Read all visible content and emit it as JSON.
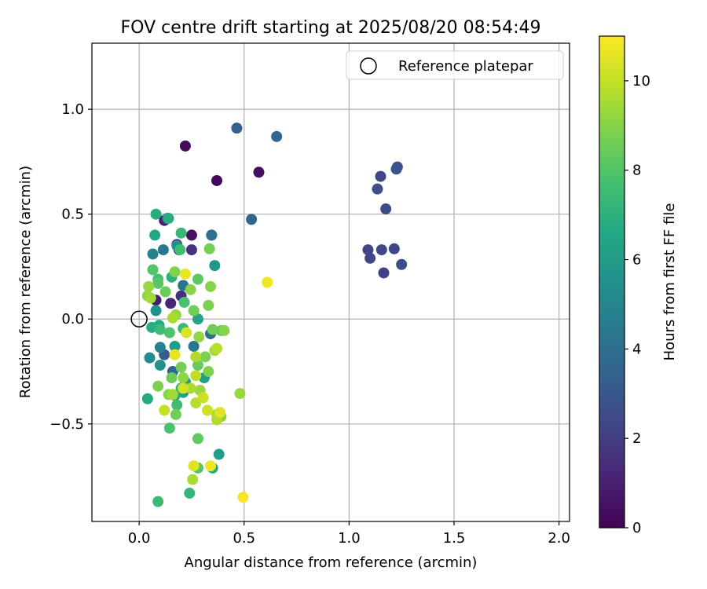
{
  "chart_data": {
    "type": "scatter",
    "title": "FOV centre drift starting at 2025/08/20 08:54:49",
    "xlabel": "Angular distance from reference (arcmin)",
    "ylabel": "Rotation from reference (arcmin)",
    "xlim": [
      -0.225,
      2.05
    ],
    "ylim": [
      -0.965,
      1.315
    ],
    "xticks": [
      0.0,
      0.5,
      1.0,
      1.5,
      2.0
    ],
    "xtick_labels": [
      "0.0",
      "0.5",
      "1.0",
      "1.5",
      "2.0"
    ],
    "yticks": [
      -0.5,
      0.0,
      0.5,
      1.0
    ],
    "ytick_labels": [
      "−0.5",
      "0.0",
      "0.5",
      "1.0"
    ],
    "grid": true,
    "legend": {
      "location": "top-right",
      "entries": [
        "Reference platepar"
      ]
    },
    "reference_point": {
      "x": 0.0,
      "y": 0.0,
      "label": "Reference platepar"
    },
    "colorbar": {
      "label": "Hours from first FF file",
      "range": [
        0,
        11
      ],
      "ticks": [
        0,
        2,
        4,
        6,
        8,
        10
      ],
      "tick_labels": [
        "0",
        "2",
        "4",
        "6",
        "8",
        "10"
      ],
      "colormap": "viridis"
    },
    "points": [
      {
        "x": 0.22,
        "y": 0.825,
        "h": 0.3
      },
      {
        "x": 0.37,
        "y": 0.66,
        "h": 0.2
      },
      {
        "x": 0.57,
        "y": 0.7,
        "h": 0.4
      },
      {
        "x": 0.25,
        "y": 0.4,
        "h": 0.5
      },
      {
        "x": 0.18,
        "y": 0.355,
        "h": 0.8
      },
      {
        "x": 0.12,
        "y": 0.47,
        "h": 1.0
      },
      {
        "x": 0.08,
        "y": 0.09,
        "h": 0.9
      },
      {
        "x": 0.15,
        "y": 0.075,
        "h": 1.2
      },
      {
        "x": 0.2,
        "y": 0.11,
        "h": 1.5
      },
      {
        "x": 0.25,
        "y": 0.33,
        "h": 1.6
      },
      {
        "x": 0.19,
        "y": 0.33,
        "h": 1.4
      },
      {
        "x": 1.23,
        "y": 0.725,
        "h": 2.6
      },
      {
        "x": 1.225,
        "y": 0.715,
        "h": 2.8
      },
      {
        "x": 1.15,
        "y": 0.68,
        "h": 2.4
      },
      {
        "x": 1.135,
        "y": 0.62,
        "h": 2.6
      },
      {
        "x": 1.175,
        "y": 0.525,
        "h": 2.5
      },
      {
        "x": 1.09,
        "y": 0.33,
        "h": 2.2
      },
      {
        "x": 1.1,
        "y": 0.29,
        "h": 2.3
      },
      {
        "x": 1.155,
        "y": 0.33,
        "h": 2.4
      },
      {
        "x": 1.215,
        "y": 0.335,
        "h": 2.3
      },
      {
        "x": 1.165,
        "y": 0.22,
        "h": 2.1
      },
      {
        "x": 1.25,
        "y": 0.26,
        "h": 2.5
      },
      {
        "x": 0.465,
        "y": 0.91,
        "h": 3.4
      },
      {
        "x": 0.655,
        "y": 0.87,
        "h": 3.5
      },
      {
        "x": 0.535,
        "y": 0.475,
        "h": 3.6
      },
      {
        "x": 0.345,
        "y": 0.4,
        "h": 3.9
      },
      {
        "x": 0.345,
        "y": 0.4,
        "h": 4.1
      },
      {
        "x": 0.115,
        "y": 0.33,
        "h": 4.4
      },
      {
        "x": 0.12,
        "y": -0.17,
        "h": 3.2
      },
      {
        "x": 0.16,
        "y": -0.25,
        "h": 3.6
      },
      {
        "x": 0.34,
        "y": -0.07,
        "h": 3.8
      },
      {
        "x": 0.26,
        "y": -0.13,
        "h": 4.4
      },
      {
        "x": 0.21,
        "y": 0.16,
        "h": 4.2
      },
      {
        "x": 0.065,
        "y": 0.31,
        "h": 4.8
      },
      {
        "x": 0.135,
        "y": 0.48,
        "h": 5.1
      },
      {
        "x": 0.18,
        "y": 0.35,
        "h": 5.4
      },
      {
        "x": 0.36,
        "y": 0.255,
        "h": 5.8
      },
      {
        "x": 0.08,
        "y": 0.04,
        "h": 5.5
      },
      {
        "x": 0.1,
        "y": -0.135,
        "h": 4.9
      },
      {
        "x": 0.05,
        "y": -0.185,
        "h": 5.2
      },
      {
        "x": 0.1,
        "y": -0.22,
        "h": 5.6
      },
      {
        "x": 0.17,
        "y": -0.13,
        "h": 6.0
      },
      {
        "x": 0.22,
        "y": -0.3,
        "h": 5.8
      },
      {
        "x": 0.21,
        "y": -0.35,
        "h": 6.2
      },
      {
        "x": 0.17,
        "y": -0.365,
        "h": 6.4
      },
      {
        "x": 0.31,
        "y": -0.28,
        "h": 6.1
      },
      {
        "x": 0.075,
        "y": 0.4,
        "h": 6.5
      },
      {
        "x": 0.08,
        "y": 0.5,
        "h": 6.8
      },
      {
        "x": 0.14,
        "y": 0.48,
        "h": 6.9
      },
      {
        "x": 0.155,
        "y": 0.2,
        "h": 7.0
      },
      {
        "x": 0.095,
        "y": -0.03,
        "h": 6.6
      },
      {
        "x": 0.06,
        "y": -0.04,
        "h": 6.9
      },
      {
        "x": 0.28,
        "y": 0.0,
        "h": 6.3
      },
      {
        "x": 0.38,
        "y": -0.645,
        "h": 6.1
      },
      {
        "x": 0.35,
        "y": -0.71,
        "h": 6.6
      },
      {
        "x": 0.24,
        "y": -0.83,
        "h": 7.2
      },
      {
        "x": 0.09,
        "y": -0.87,
        "h": 7.4
      },
      {
        "x": 0.04,
        "y": -0.38,
        "h": 6.7
      },
      {
        "x": 0.2,
        "y": 0.41,
        "h": 7.3
      },
      {
        "x": 0.195,
        "y": 0.33,
        "h": 7.6
      },
      {
        "x": 0.09,
        "y": 0.19,
        "h": 7.7
      },
      {
        "x": 0.065,
        "y": 0.235,
        "h": 8.0
      },
      {
        "x": 0.09,
        "y": 0.17,
        "h": 8.1
      },
      {
        "x": 0.215,
        "y": 0.08,
        "h": 7.8
      },
      {
        "x": 0.145,
        "y": -0.065,
        "h": 7.9
      },
      {
        "x": 0.1,
        "y": -0.05,
        "h": 7.5
      },
      {
        "x": 0.21,
        "y": -0.045,
        "h": 7.4
      },
      {
        "x": 0.2,
        "y": -0.33,
        "h": 7.1
      },
      {
        "x": 0.145,
        "y": -0.52,
        "h": 7.8
      },
      {
        "x": 0.18,
        "y": -0.41,
        "h": 7.6
      },
      {
        "x": 0.28,
        "y": -0.57,
        "h": 8.3
      },
      {
        "x": 0.28,
        "y": -0.71,
        "h": 8.0
      },
      {
        "x": 0.39,
        "y": -0.055,
        "h": 8.4
      },
      {
        "x": 0.35,
        "y": -0.05,
        "h": 8.6
      },
      {
        "x": 0.33,
        "y": 0.065,
        "h": 8.8
      },
      {
        "x": 0.34,
        "y": 0.155,
        "h": 9.0
      },
      {
        "x": 0.28,
        "y": 0.19,
        "h": 8.2
      },
      {
        "x": 0.335,
        "y": 0.335,
        "h": 8.7
      },
      {
        "x": 0.17,
        "y": 0.225,
        "h": 8.9
      },
      {
        "x": 0.045,
        "y": 0.155,
        "h": 9.3
      },
      {
        "x": 0.04,
        "y": 0.11,
        "h": 9.1
      },
      {
        "x": 0.055,
        "y": 0.1,
        "h": 9.4
      },
      {
        "x": 0.125,
        "y": 0.13,
        "h": 8.5
      },
      {
        "x": 0.175,
        "y": 0.02,
        "h": 9.2
      },
      {
        "x": 0.16,
        "y": 0.005,
        "h": 9.6
      },
      {
        "x": 0.245,
        "y": 0.14,
        "h": 9.0
      },
      {
        "x": 0.26,
        "y": 0.04,
        "h": 8.6
      },
      {
        "x": 0.285,
        "y": -0.085,
        "h": 9.2
      },
      {
        "x": 0.315,
        "y": -0.18,
        "h": 8.8
      },
      {
        "x": 0.36,
        "y": -0.15,
        "h": 9.5
      },
      {
        "x": 0.37,
        "y": -0.14,
        "h": 9.8
      },
      {
        "x": 0.405,
        "y": -0.055,
        "h": 9.0
      },
      {
        "x": 0.27,
        "y": -0.18,
        "h": 9.7
      },
      {
        "x": 0.28,
        "y": -0.22,
        "h": 8.4
      },
      {
        "x": 0.33,
        "y": -0.25,
        "h": 8.9
      },
      {
        "x": 0.27,
        "y": -0.27,
        "h": 9.9
      },
      {
        "x": 0.29,
        "y": -0.34,
        "h": 9.3
      },
      {
        "x": 0.2,
        "y": -0.23,
        "h": 8.7
      },
      {
        "x": 0.21,
        "y": -0.28,
        "h": 9.1
      },
      {
        "x": 0.155,
        "y": -0.28,
        "h": 8.5
      },
      {
        "x": 0.09,
        "y": -0.32,
        "h": 8.8
      },
      {
        "x": 0.16,
        "y": -0.36,
        "h": 9.4
      },
      {
        "x": 0.14,
        "y": -0.36,
        "h": 9.0
      },
      {
        "x": 0.21,
        "y": -0.33,
        "h": 10.3
      },
      {
        "x": 0.245,
        "y": -0.33,
        "h": 9.6
      },
      {
        "x": 0.305,
        "y": -0.375,
        "h": 10.1
      },
      {
        "x": 0.27,
        "y": -0.4,
        "h": 9.8
      },
      {
        "x": 0.325,
        "y": -0.435,
        "h": 10.2
      },
      {
        "x": 0.12,
        "y": -0.435,
        "h": 10.0
      },
      {
        "x": 0.175,
        "y": -0.455,
        "h": 8.6
      },
      {
        "x": 0.37,
        "y": -0.455,
        "h": 9.5
      },
      {
        "x": 0.39,
        "y": -0.465,
        "h": 9.0
      },
      {
        "x": 0.37,
        "y": -0.48,
        "h": 9.7
      },
      {
        "x": 0.385,
        "y": -0.445,
        "h": 10.5
      },
      {
        "x": 0.48,
        "y": -0.355,
        "h": 9.3
      },
      {
        "x": 0.225,
        "y": -0.065,
        "h": 10.4
      },
      {
        "x": 0.17,
        "y": -0.17,
        "h": 10.6
      },
      {
        "x": 0.22,
        "y": 0.215,
        "h": 10.7
      },
      {
        "x": 0.61,
        "y": 0.175,
        "h": 10.8
      },
      {
        "x": 0.255,
        "y": -0.765,
        "h": 9.6
      },
      {
        "x": 0.26,
        "y": -0.7,
        "h": 10.5
      },
      {
        "x": 0.34,
        "y": -0.7,
        "h": 10.8
      },
      {
        "x": 0.495,
        "y": -0.85,
        "h": 10.9
      }
    ]
  }
}
